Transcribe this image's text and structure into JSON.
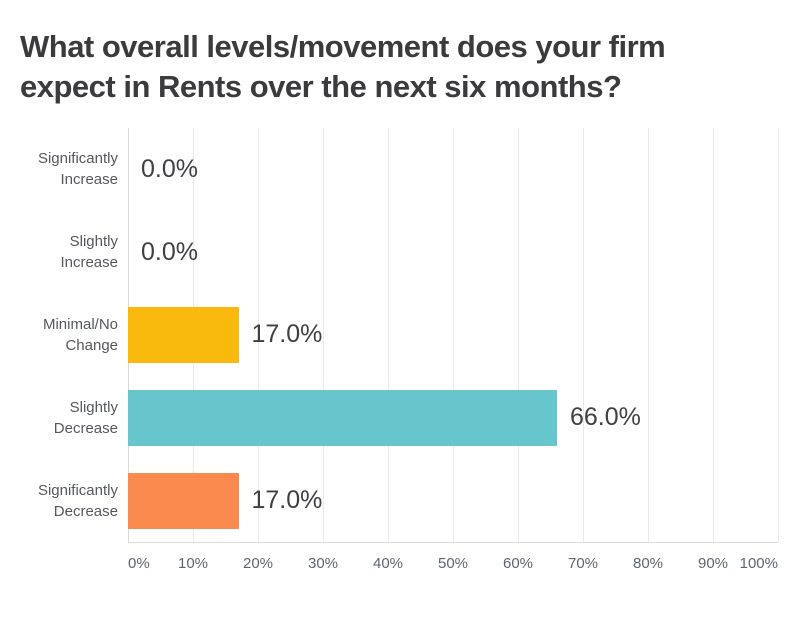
{
  "title": "What overall levels/movement does your firm expect in Rents over the next six months?",
  "chart_data": {
    "type": "bar",
    "orientation": "horizontal",
    "title": "What overall levels/movement does your firm expect in Rents over the next six months?",
    "categories": [
      "Significantly Increase",
      "Slightly Increase",
      "Minimal/No Change",
      "Slightly Decrease",
      "Significantly Decrease"
    ],
    "category_lines": [
      [
        "Significantly",
        "Increase"
      ],
      [
        "Slightly",
        "Increase"
      ],
      [
        "Minimal/No",
        "Change"
      ],
      [
        "Slightly",
        "Decrease"
      ],
      [
        "Significantly",
        "Decrease"
      ]
    ],
    "values": [
      0.0,
      0.0,
      17.0,
      66.0,
      17.0
    ],
    "value_labels": [
      "0.0%",
      "0.0%",
      "17.0%",
      "66.0%",
      "17.0%"
    ],
    "bar_colors": [
      null,
      null,
      "#f9ba0d",
      "#67c6cb",
      "#fb8a4e"
    ],
    "xlabel": "",
    "ylabel": "",
    "xlim": [
      0,
      100
    ],
    "tick_labels": [
      "0%",
      "10%",
      "20%",
      "30%",
      "40%",
      "50%",
      "60%",
      "70%",
      "80%",
      "90%",
      "100%"
    ],
    "grid": true,
    "legend": false,
    "value_label_position": "right-of-bar"
  }
}
